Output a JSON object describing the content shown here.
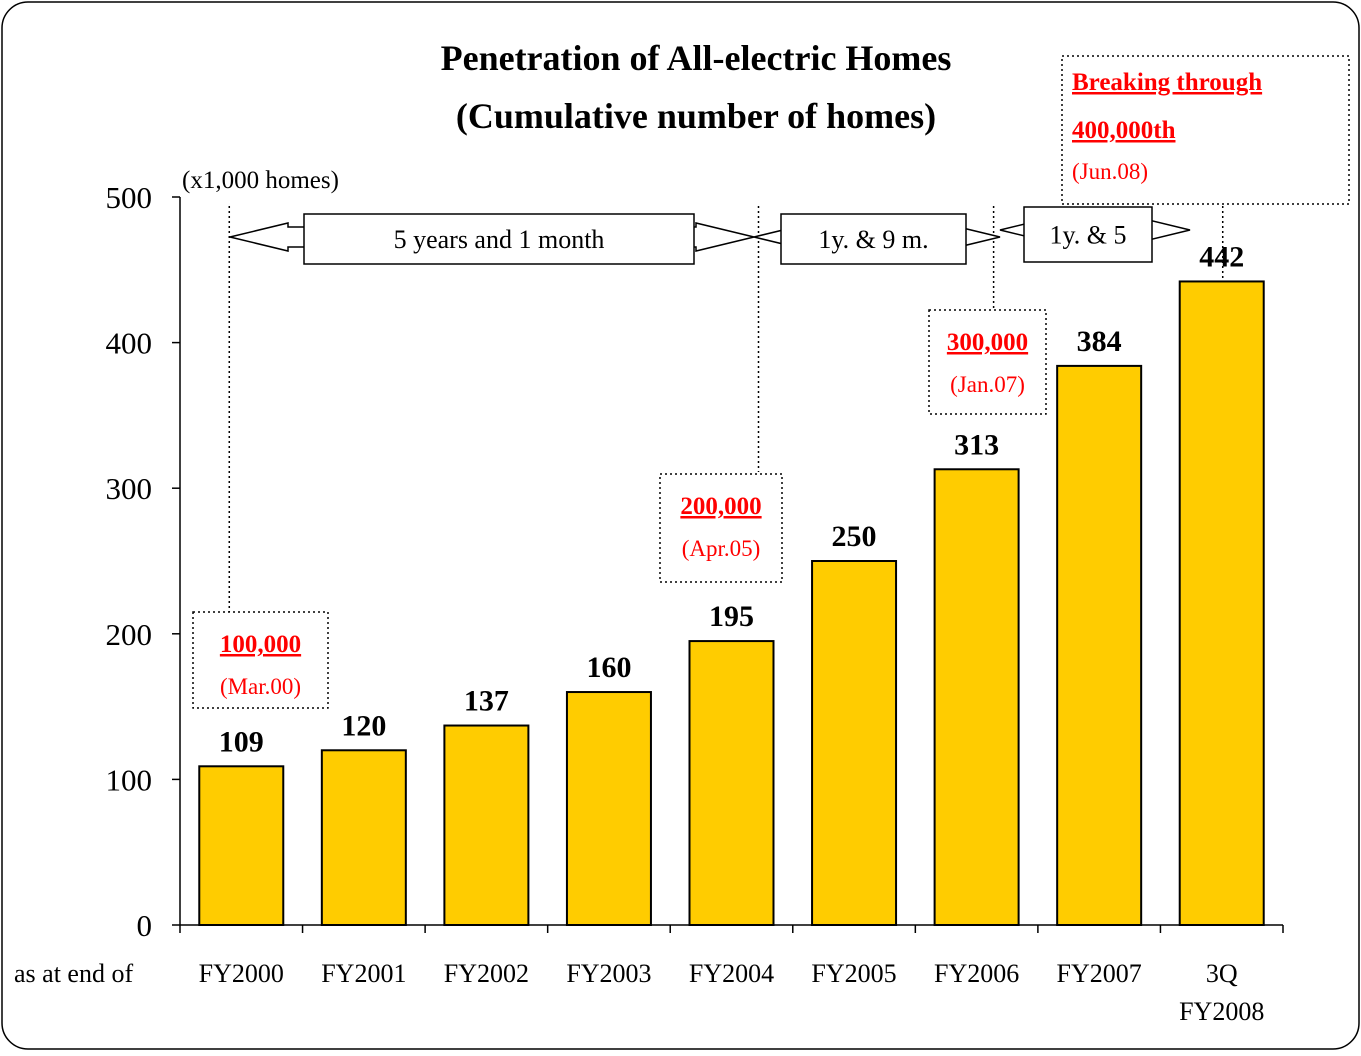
{
  "chart_data": {
    "type": "bar",
    "title": "Penetration of All-electric Homes",
    "subtitle": "(Cumulative number of homes)",
    "unit_label": "(x1,000 homes)",
    "xlabel": "as at end of",
    "categories": [
      "FY2000",
      "FY2001",
      "FY2002",
      "FY2003",
      "FY2004",
      "FY2005",
      "FY2006",
      "FY2007",
      "3Q|FY2008"
    ],
    "values": [
      109,
      120,
      137,
      160,
      195,
      250,
      313,
      384,
      442
    ],
    "ylim": [
      0,
      500
    ],
    "yticks": [
      0,
      100,
      200,
      300,
      400,
      500
    ],
    "grid": false,
    "bar_color": "#ffcc00",
    "milestones": [
      {
        "number": "100,000",
        "date": "(Mar.00)",
        "category_index": 0
      },
      {
        "number": "200,000",
        "date": "(Apr.05)",
        "category_index": 4
      },
      {
        "number": "300,000",
        "date": "(Jan.07)",
        "category_index": 6
      },
      {
        "prefix": "Breaking through",
        "number": "400,000th",
        "date": "(Jun.08)",
        "category_index": 8
      }
    ],
    "spans": [
      {
        "label": "5 years and 1 month",
        "from": 0,
        "to": 4
      },
      {
        "label": "1y. & 9 m.",
        "from": 4,
        "to": 6
      },
      {
        "label": "1y. & 5",
        "from": 6,
        "to": 8
      }
    ],
    "milestone_color": "#ff0000"
  }
}
